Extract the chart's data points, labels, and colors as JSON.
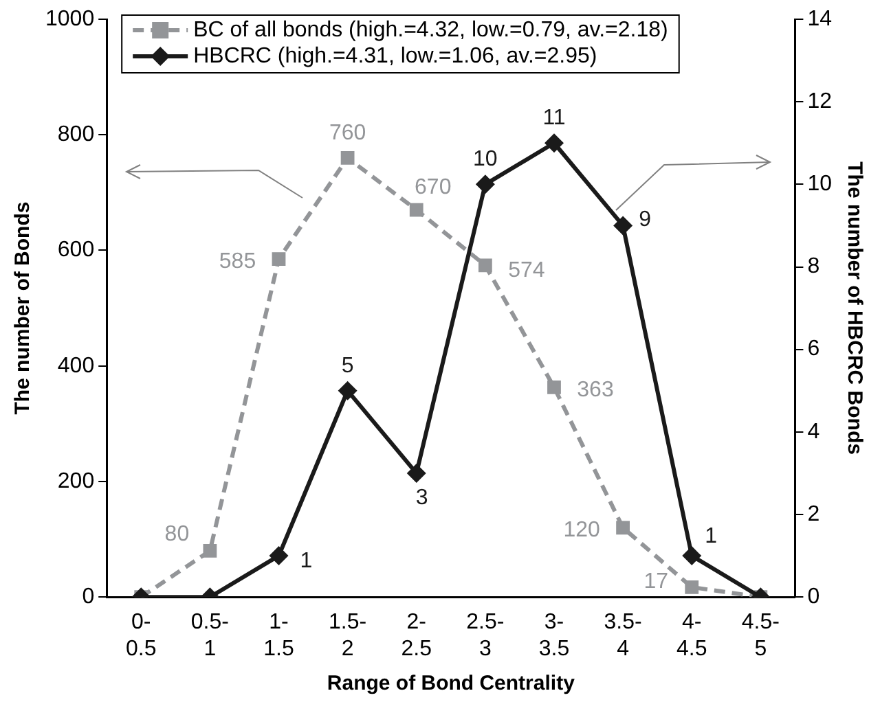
{
  "chart_data": {
    "type": "line",
    "categories": [
      "0-0.5",
      "0.5-1",
      "1-1.5",
      "1.5-2",
      "2-2.5",
      "2.5-3",
      "3-3.5",
      "3.5-4",
      "4-4.5",
      "4.5-5"
    ],
    "xlabel": "Range of Bond Centrality",
    "ylabel": "The number of Bonds",
    "y2label": "The number of HBCRC Bonds",
    "ylim": [
      0,
      1000
    ],
    "yticks": [
      0,
      200,
      400,
      600,
      800,
      1000
    ],
    "y2lim": [
      0,
      14
    ],
    "y2ticks": [
      0,
      2,
      4,
      6,
      8,
      10,
      12,
      14
    ],
    "grid": false,
    "legend": "top",
    "series": [
      {
        "name": "BC of all bonds (high.=4.32, low.=0.79, av.=2.18)",
        "color": "#939598",
        "marker": "square",
        "line_style": "dashed",
        "values": [
          0,
          80,
          585,
          760,
          670,
          574,
          363,
          120,
          17,
          0
        ],
        "value_labels": [
          null,
          "80",
          "585",
          "760",
          "670",
          "574",
          "363",
          "120",
          "17",
          null
        ]
      },
      {
        "name": "HBCRC (high.=4.31, low.=1.06, av.=2.95)",
        "color": "#1a1a1a",
        "marker": "diamond",
        "line_style": "solid",
        "axis": "y2",
        "values": [
          0,
          0,
          1,
          5,
          3,
          10,
          11,
          9,
          1,
          0
        ],
        "value_labels": [
          null,
          null,
          "1",
          "5",
          "3",
          "10",
          "11",
          "9",
          "1",
          null
        ]
      }
    ]
  }
}
